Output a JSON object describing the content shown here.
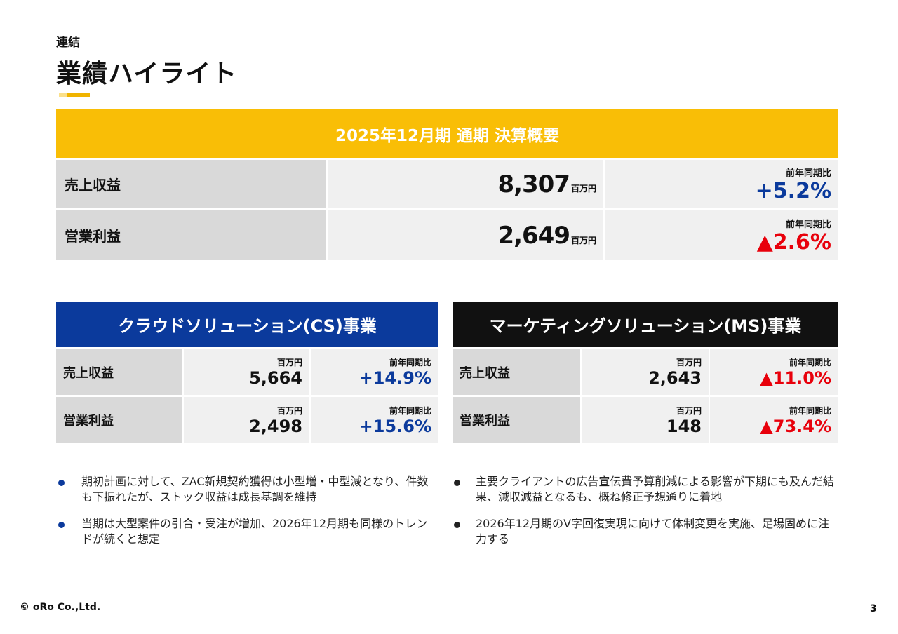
{
  "header": {
    "subtitle": "連結",
    "title": "業績ハイライト"
  },
  "summary": {
    "banner": "2025年12月期 通期 決算概要",
    "rows": [
      {
        "label": "売上収益",
        "value": "8,307",
        "unit": "百万円",
        "yoy_label": "前年同期比",
        "yoy": "+5.2%",
        "yoy_color": "#0b3a9c"
      },
      {
        "label": "営業利益",
        "value": "2,649",
        "unit": "百万円",
        "yoy_label": "前年同期比",
        "yoy": "▲2.6%",
        "yoy_color": "#e8000b"
      }
    ]
  },
  "segments": [
    {
      "title": "クラウドソリューション(CS)事業",
      "color": "#0b3a9c",
      "rows": [
        {
          "label": "売上収益",
          "unit": "百万円",
          "value": "5,664",
          "yoy_label": "前年同期比",
          "yoy": "+14.9%"
        },
        {
          "label": "営業利益",
          "unit": "百万円",
          "value": "2,498",
          "yoy_label": "前年同期比",
          "yoy": "+15.6%"
        }
      ],
      "bullets": [
        "期初計画に対して、ZAC新規契約獲得は小型増・中型減となり、件数も下振れたが、ストック収益は成長基調を維持",
        "当期は大型案件の引合・受注が増加、2026年12月期も同様のトレンドが続くと想定"
      ]
    },
    {
      "title": "マーケティングソリューション(MS)事業",
      "color": "#111111",
      "rows": [
        {
          "label": "売上収益",
          "unit": "百万円",
          "value": "2,643",
          "yoy_label": "前年同期比",
          "yoy": "▲11.0%"
        },
        {
          "label": "営業利益",
          "unit": "百万円",
          "value": "148",
          "yoy_label": "前年同期比",
          "yoy": "▲73.4%"
        }
      ],
      "bullets": [
        "主要クライアントの広告宣伝費予算削減による影響が下期にも及んだ結果、減収減益となるも、概ね修正予想通りに着地",
        "2026年12月期のV字回復実現に向けて体制変更を実施、足場固めに注力する"
      ]
    }
  ],
  "footer": {
    "copyright": "© oRo Co.,Ltd.",
    "page": "3"
  }
}
